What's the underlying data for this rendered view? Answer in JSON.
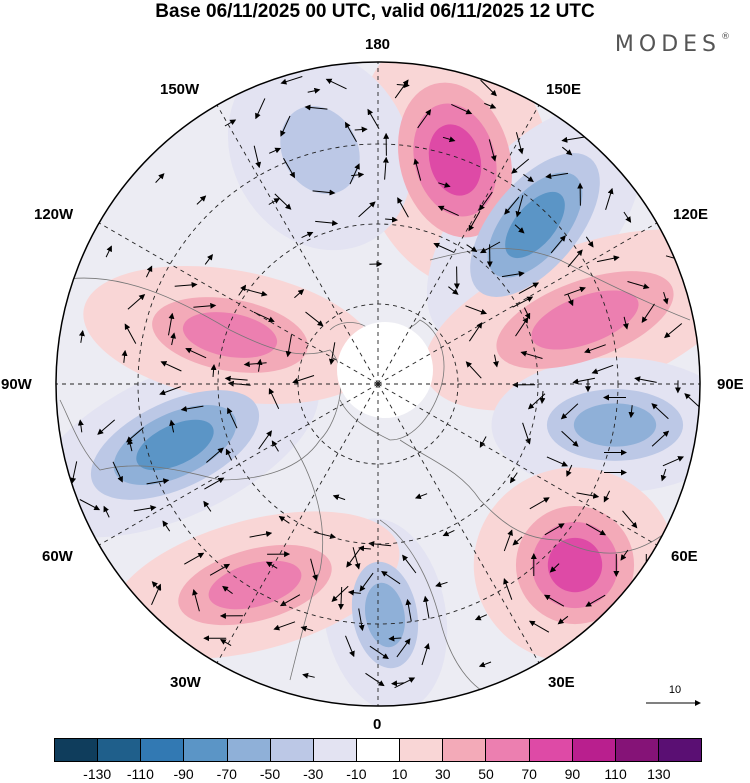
{
  "header": {
    "title": "Base 06/11/2025 00 UTC, valid 06/11/2025 12 UTC",
    "brand": "MODES",
    "brand_mark": "®"
  },
  "map": {
    "projection": "north polar stereographic",
    "longitude_labels": {
      "top": "180",
      "top_left": "150W",
      "top_right": "150E",
      "upper_left": "120W",
      "upper_right": "120E",
      "left": "90W",
      "right": "90E",
      "lower_left": "60W",
      "lower_right": "60E",
      "bottom_left": "30W",
      "bottom_right": "30E",
      "bottom": "0"
    },
    "reference_vector": "10"
  },
  "colorbar": {
    "ticks": [
      "-130",
      "-110",
      "-90",
      "-70",
      "-50",
      "-30",
      "-10",
      "10",
      "30",
      "50",
      "70",
      "90",
      "110",
      "130"
    ],
    "colors": [
      "#0f3d5c",
      "#1f5f8b",
      "#3279b3",
      "#5b95c6",
      "#8fb0d8",
      "#bcc8e6",
      "#e3e3f2",
      "#ffffff",
      "#f9d6d6",
      "#f3aab8",
      "#ec7fb0",
      "#de4aa6",
      "#b91f8e",
      "#851377",
      "#5a0f73"
    ]
  },
  "anomalies": [
    {
      "name": "high-east-siberia",
      "value": 90,
      "sign": "positive"
    },
    {
      "name": "low-japan",
      "value": -90,
      "sign": "negative"
    },
    {
      "name": "high-central-asia",
      "value": 70,
      "sign": "positive"
    },
    {
      "name": "low-east-asia",
      "value": -70,
      "sign": "negative"
    },
    {
      "name": "high-middle-east",
      "value": 90,
      "sign": "positive"
    },
    {
      "name": "low-europe",
      "value": -70,
      "sign": "negative"
    },
    {
      "name": "high-north-atlantic",
      "value": 70,
      "sign": "positive"
    },
    {
      "name": "low-north-america-east",
      "value": -90,
      "sign": "negative"
    },
    {
      "name": "high-canada",
      "value": 70,
      "sign": "positive"
    },
    {
      "name": "low-north-pacific",
      "value": -50,
      "sign": "negative"
    }
  ]
}
